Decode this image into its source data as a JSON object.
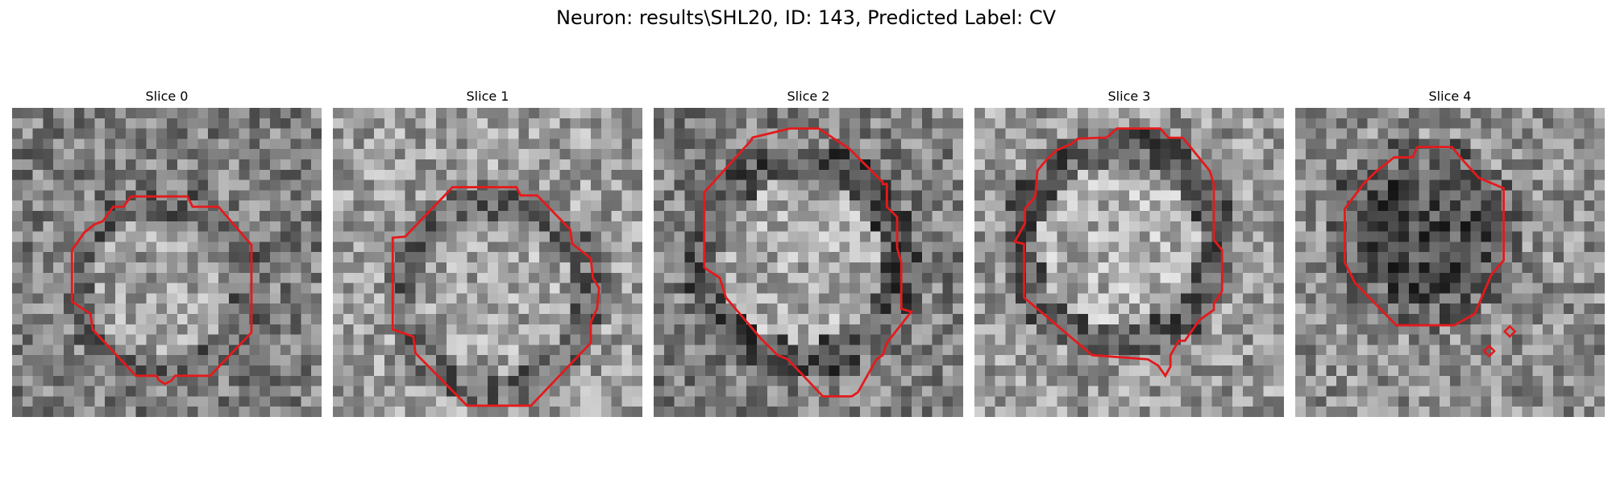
{
  "figure": {
    "title": "Neuron: results\\SHL20, ID: 143, Predicted Label: CV"
  },
  "panels": [
    {
      "title": "Slice 0"
    },
    {
      "title": "Slice 1"
    },
    {
      "title": "Slice 2"
    },
    {
      "title": "Slice 3"
    },
    {
      "title": "Slice 4"
    }
  ],
  "colors": {
    "contour": "#e41a1c",
    "background": "#ffffff"
  }
}
